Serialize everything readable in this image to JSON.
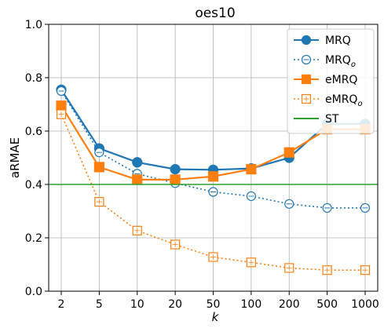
{
  "chart_data": {
    "type": "line",
    "title": "oes10",
    "xlabel": "k",
    "ylabel": "aRMAE",
    "categories": [
      "2",
      "5",
      "10",
      "20",
      "50",
      "100",
      "200",
      "500",
      "1000"
    ],
    "ylim": [
      0.0,
      1.0
    ],
    "yticks": [
      "0.0",
      "0.2",
      "0.4",
      "0.6",
      "0.8",
      "1.0"
    ],
    "grid": true,
    "legend_position": "top-right",
    "series": [
      {
        "name": "MRQ",
        "color": "#1f77b4",
        "style": "solid",
        "marker": "circle",
        "filled": true,
        "values": [
          0.755,
          0.535,
          0.483,
          0.457,
          0.455,
          0.46,
          0.5,
          0.627,
          0.627
        ]
      },
      {
        "name": "MRQ",
        "sub": "o",
        "color": "#1f77b4",
        "style": "dotted",
        "marker": "circle",
        "filled": false,
        "values": [
          0.75,
          0.52,
          0.44,
          0.405,
          0.372,
          0.356,
          0.327,
          0.312,
          0.312
        ]
      },
      {
        "name": "eMRQ",
        "color": "#ff7f0e",
        "style": "solid",
        "marker": "square",
        "filled": true,
        "values": [
          0.695,
          0.465,
          0.418,
          0.418,
          0.43,
          0.457,
          0.52,
          0.607,
          0.607
        ]
      },
      {
        "name": "eMRQ",
        "sub": "o",
        "color": "#ff7f0e",
        "style": "dotted",
        "marker": "square",
        "filled": false,
        "values": [
          0.663,
          0.335,
          0.227,
          0.175,
          0.128,
          0.108,
          0.087,
          0.079,
          0.079
        ]
      },
      {
        "name": "ST",
        "color": "#2ca02c",
        "style": "solid",
        "marker": "none",
        "filled": false,
        "hline": 0.4
      }
    ]
  }
}
